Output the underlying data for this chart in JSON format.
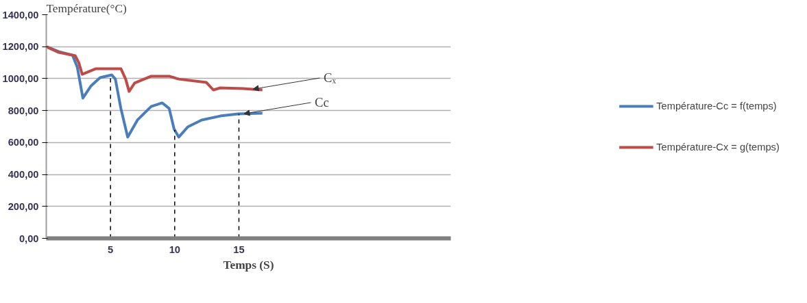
{
  "chart_data": {
    "type": "line",
    "ylabel": "Température(°C)",
    "xlabel": "Temps (S)",
    "xlim": [
      0,
      31.5
    ],
    "xticks": [
      5,
      10,
      15
    ],
    "ylim": [
      0,
      1400
    ],
    "yticks": [
      {
        "value": 0,
        "label": "0,00"
      },
      {
        "value": 200,
        "label": "200,00"
      },
      {
        "value": 400,
        "label": "400,00"
      },
      {
        "value": 600,
        "label": "600,00"
      },
      {
        "value": 800,
        "label": "800,00"
      },
      {
        "value": 1000,
        "label": "1000,00"
      },
      {
        "value": 1200,
        "label": "1200,00"
      },
      {
        "value": 1400,
        "label": "1400,00"
      }
    ],
    "grid": "y",
    "legend": "right",
    "line_style": "solid",
    "marker": "none",
    "series": [
      {
        "name": "Température-Cc = f(temps)",
        "color": "#4a7ebb",
        "x": [
          0,
          0.97,
          2.04,
          2.42,
          2.85,
          3.49,
          4.19,
          5.1,
          5.38,
          5.81,
          6.34,
          7.1,
          8.17,
          9.03,
          9.57,
          9.95,
          10.32,
          11.02,
          12.1,
          13.55,
          14.95,
          16.83
        ],
        "values": [
          1200,
          1169,
          1147,
          1070,
          878,
          955,
          1006,
          1023,
          997,
          813,
          634,
          741,
          826,
          848,
          813,
          685,
          634,
          698,
          741,
          766,
          779,
          783
        ]
      },
      {
        "name": "Température-Cx = g(temps)",
        "color": "#be4b48",
        "x": [
          0,
          0.97,
          2.26,
          2.53,
          2.8,
          3.87,
          5.81,
          6.18,
          6.45,
          6.88,
          8.17,
          9.57,
          10.32,
          12.47,
          13.01,
          13.55,
          15.32,
          16.83
        ],
        "values": [
          1200,
          1164,
          1143,
          1100,
          1027,
          1062,
          1062,
          997,
          920,
          972,
          1015,
          1015,
          997,
          976,
          929,
          942,
          938,
          929
        ]
      }
    ],
    "ref_lines": [
      {
        "axis": "x",
        "value": 5,
        "line_style": "dashed",
        "color": "#000000"
      },
      {
        "axis": "x",
        "value": 10,
        "line_style": "dashed",
        "color": "#000000"
      },
      {
        "axis": "x",
        "value": 15,
        "line_style": "dashed",
        "color": "#000000"
      }
    ],
    "annotations": [
      {
        "text": "Cₓ",
        "x": 16.1,
        "y": 934
      },
      {
        "text": "Cc",
        "x": 15.4,
        "y": 780
      }
    ]
  }
}
